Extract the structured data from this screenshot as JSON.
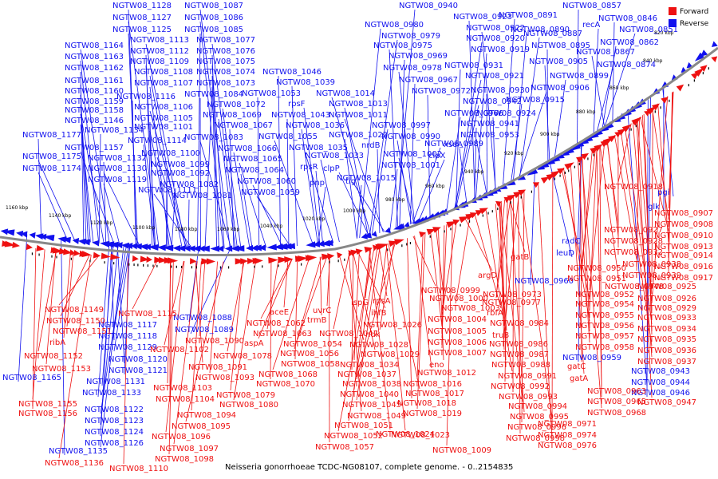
{
  "caption": "Neisseria gonorrhoeae TCDC-NG08107, complete genome. - 0..2154835",
  "colors": {
    "forward": "#ee1111",
    "reverse": "#1111ee",
    "backbone": "#888888"
  },
  "legend": [
    {
      "name": "Forward",
      "color": "#ee1111"
    },
    {
      "name": "Reverse",
      "color": "#1111ee"
    }
  ],
  "ticks": [
    "1160 kbp",
    "1140 kbp",
    "1120 kbp",
    "1100 kbp",
    "1080 kbp",
    "1060 kbp",
    "1040 kbp",
    "1020 kbp",
    "1000 kbp",
    "980 kbp",
    "960 kbp",
    "940 kbp",
    "920 kbp",
    "900 kbp",
    "880 kbp",
    "860 kbp",
    "840 kbp",
    "820 kbp"
  ],
  "reverse_labels": [
    "NGTW08_1128",
    "NGTW08_1087",
    "NGTW08_1127",
    "NGTW08_1086",
    "NGTW08_1125",
    "NGTW08_1085",
    "NGTW08_1113",
    "NGTW08_1077",
    "NGTW08_1164",
    "NGTW08_1112",
    "NGTW08_1076",
    "NGTW08_1163",
    "NGTW08_1109",
    "NGTW08_1075",
    "NGTW08_1162",
    "NGTW08_1108",
    "NGTW08_1074",
    "NGTW08_1161",
    "NGTW08_1107",
    "NGTW08_1073",
    "NGTW08_1160",
    "NGTW08_1116",
    "NGTW08_1084",
    "NGTW08_1159",
    "NGTW08_1106",
    "NGTW08_1072",
    "NGTW08_1158",
    "NGTW08_1105",
    "NGTW08_1069",
    "NGTW08_1146",
    "NGTW08_1101",
    "NGTW08_1067",
    "NGTW08_1134",
    "NGTW08_1083",
    "NGTW08_1177",
    "NGTW08_1114",
    "NGTW08_1066",
    "NGTW08_1157",
    "NGTW08_1100",
    "NGTW08_1065",
    "NGTW08_1175",
    "NGTW08_1132",
    "NGTW08_1099",
    "NGTW08_1064",
    "NGTW08_1174",
    "NGTW08_1130",
    "NGTW08_1092",
    "NGTW08_1060",
    "NGTW08_1119",
    "NGTW08_1082",
    "NGTW08_1059",
    "NGTW08_1111",
    "NGTW08_1081",
    "NGTW08_1046",
    "NGTW08_1039",
    "NGTW08_1053",
    "NGTW08_1014",
    "rpsF",
    "NGTW08_1013",
    "NGTW08_1043",
    "NGTW08_1011",
    "NGTW08_1036",
    "NGTW08_1055",
    "NGTW08_1022",
    "NGTW08_1035",
    "nrdB",
    "NGTW08_1033",
    "rpsR",
    "clpP",
    "pnp",
    "tig",
    "NGTW08_1015",
    "NGTW08_0940",
    "NGTW08_0980",
    "NGTW08_0923",
    "NGTW08_0979",
    "NGTW08_0922",
    "NGTW08_0975",
    "NGTW08_0920",
    "NGTW08_0969",
    "NGTW08_0919",
    "NGTW08_0978",
    "NGTW08_0931",
    "NGTW08_0967",
    "NGTW08_0921",
    "NGTW08_0972",
    "NGTW08_0930",
    "NGTW08_0942",
    "NGTW08_0966",
    "NGTW08_0924",
    "NGTW08_0941",
    "NGTW08_0997",
    "NGTW08_0990",
    "NGTW08_0953",
    "NGTW08_1002",
    "NGTW08_0989",
    "xseA",
    "clpX",
    "NGTW08_1001",
    "NGTW08_0891",
    "NGTW08_0857",
    "NGTW08_0890",
    "recA",
    "NGTW08_0846",
    "NGTW08_0887",
    "NGTW08_0851",
    "NGTW08_0895",
    "NGTW08_0862",
    "NGTW08_0867",
    "NGTW08_0905",
    "NGTW08_0874",
    "NGTW08_0899",
    "NGTW08_0906",
    "NGTW08_0915",
    "pgi",
    "glk",
    "radC",
    "leuD",
    "NGTW08_0960",
    "NGTW08_0959",
    "NGTW08_0943",
    "NGTW08_0944",
    "NGTW08_0946",
    "NGTW08_1088",
    "NGTW08_1089",
    "NGTW08_1117",
    "NGTW08_1118",
    "NGTW08_1129",
    "NGTW08_1120",
    "NGTW08_1121",
    "NGTW08_1165",
    "NGTW08_1131",
    "NGTW08_1133",
    "NGTW08_1122",
    "NGTW08_1123",
    "NGTW08_1124",
    "NGTW08_1126",
    "NGTW08_1135"
  ],
  "forward_labels": [
    "NGTW08_1149",
    "NGTW08_1115",
    "NGTW08_1150",
    "NGTW08_1151",
    "ribA",
    "NGTW08_1152",
    "NGTW08_1153",
    "NGTW08_1155",
    "NGTW08_1156",
    "NGTW08_1136",
    "NGTW08_1110",
    "NGTW08_1090",
    "NGTW08_1102",
    "NGTW08_1091",
    "NGTW08_1093",
    "NGTW08_1103",
    "NGTW08_1104",
    "NGTW08_1094",
    "NGTW08_1095",
    "NGTW08_1096",
    "NGTW08_1097",
    "NGTW08_1098",
    "NGTW08_1078",
    "NGTW08_1079",
    "NGTW08_1080",
    "aceE",
    "trmB",
    "NGTW08_1062",
    "uvrC",
    "NGTW08_1063",
    "NGTW08_1047",
    "aspA",
    "NGTW08_1054",
    "NGTW08_1056",
    "NGTW08_1068",
    "NGTW08_1058",
    "NGTW08_1070",
    "NGTW08_1049",
    "NGTW08_1051",
    "NGTW08_1052",
    "NGTW08_1057",
    "ispG",
    "rpsA",
    "ihfB",
    "NGTW08_1026",
    "ndk",
    "NGTW08_1028",
    "NGTW08_1029",
    "NGTW08_1034",
    "NGTW08_1037",
    "NGTW08_1038",
    "NGTW08_1040",
    "NGTW08_1045",
    "NGTW08_0999",
    "NGTW08_1003",
    "NGTW08_1000",
    "NGTW08_1004",
    "NGTW08_1005",
    "NGTW08_1006",
    "NGTW08_1007",
    "eno",
    "NGTW08_1012",
    "NGTW08_1016",
    "NGTW08_1017",
    "NGTW08_1018",
    "NGTW08_1019",
    "NGTW08_1023",
    "NGTW08_1024",
    "NGTW08_1009",
    "argD",
    "NGTW08_0973",
    "NGTW08_0977",
    "rbfA",
    "NGTW08_0984",
    "truB",
    "NGTW08_0986",
    "NGTW08_0987",
    "NGTW08_0988",
    "NGTW08_0991",
    "NGTW08_0992",
    "NGTW08_0993",
    "NGTW08_0994",
    "NGTW08_0995",
    "NGTW08_0996",
    "NGTW08_0998",
    "gatB",
    "NGTW08_0950",
    "NGTW08_0951",
    "NGTW08_0952",
    "NGTW08_0954",
    "NGTW08_0955",
    "NGTW08_0956",
    "NGTW08_0957",
    "NGTW08_0958",
    "gatC",
    "gatA",
    "NGTW08_0963",
    "NGTW08_0965",
    "NGTW08_0968",
    "NGTW08_0971",
    "NGTW08_0974",
    "NGTW08_0976",
    "NGTW08_0918",
    "NGTW08_0907",
    "NGTW08_0908",
    "NGTW08_0927",
    "NGTW08_0910",
    "NGTW08_0928",
    "NGTW08_0913",
    "NGTW08_0932",
    "NGTW08_0914",
    "NGTW08_0938",
    "NGTW08_0916",
    "NGTW08_0939",
    "NGTW08_0917",
    "NGTW08_0948",
    "NGTW08_0925",
    "NGTW08_0926",
    "NGTW08_0929",
    "NGTW08_0933",
    "NGTW08_0934",
    "NGTW08_0935",
    "NGTW08_0936",
    "NGTW08_0937",
    "NGTW08_0947"
  ]
}
